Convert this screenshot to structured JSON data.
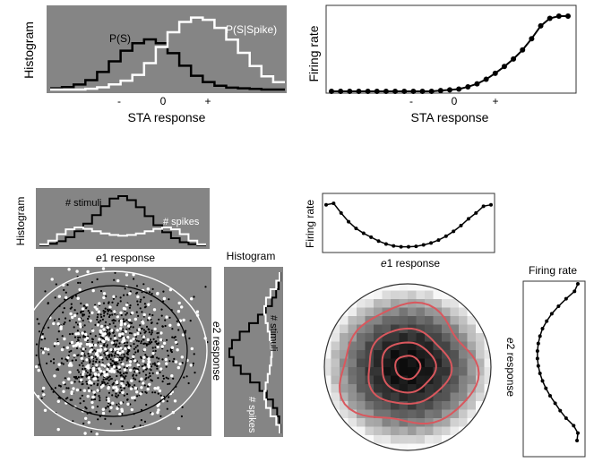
{
  "colors": {
    "panel_gray": "#858585",
    "black": "#000000",
    "white": "#ffffff",
    "contour_red": "#d9575d"
  },
  "panelA": {
    "ylabel": "Histogram",
    "xlabel": "STA response",
    "curve_labels": [
      "P(S)",
      "P(S|Spike)"
    ],
    "ticks": [
      "-",
      "0",
      "+"
    ]
  },
  "panelB": {
    "ylabel": "Firing rate",
    "xlabel": "STA response",
    "ticks": [
      "-",
      "0",
      "+"
    ]
  },
  "panelC": {
    "top_ylabel": "Histogram",
    "top_labels": [
      "# stimuli",
      "# spikes"
    ],
    "top_xlabel_italic": "e",
    "top_xlabel_num": "1",
    "top_xlabel_rest": " response",
    "side_title": "Histogram",
    "side_labels": [
      "# stimuli",
      "# spikes"
    ],
    "side_ylabel_italic": "e",
    "side_ylabel_num": "2",
    "side_ylabel_rest": " response"
  },
  "panelD": {
    "top_ylabel": "Firing rate",
    "top_xlabel_italic": "e",
    "top_xlabel_num": "1",
    "top_xlabel_rest": " response",
    "side_title": "Firing rate",
    "side_ylabel_italic": "e",
    "side_ylabel_num": "2",
    "side_ylabel_rest": " response"
  },
  "chart_data": [
    {
      "type": "line",
      "title": "",
      "xlabel": "STA response",
      "ylabel": "Histogram",
      "x_ticks": [
        "-",
        "0",
        "+"
      ],
      "series": [
        {
          "name": "P(S)",
          "values": [
            0.02,
            0.04,
            0.08,
            0.15,
            0.28,
            0.45,
            0.62,
            0.74,
            0.8,
            0.74,
            0.58,
            0.38,
            0.22,
            0.12,
            0.06,
            0.03,
            0.02,
            0.01,
            0.0,
            0.0
          ]
        },
        {
          "name": "P(S|Spike)",
          "values": [
            0.0,
            0.0,
            0.0,
            0.01,
            0.03,
            0.07,
            0.12,
            0.2,
            0.36,
            0.58,
            0.78,
            0.92,
            0.98,
            0.95,
            0.84,
            0.68,
            0.5,
            0.32,
            0.18,
            0.1
          ]
        }
      ]
    },
    {
      "type": "line",
      "title": "",
      "xlabel": "STA response",
      "ylabel": "Firing rate",
      "x_ticks": [
        "-",
        "0",
        "+"
      ],
      "series": [
        {
          "name": "",
          "values": [
            0.0,
            0.0,
            0.0,
            0.0,
            0.0,
            0.0,
            0.0,
            0.0,
            0.0,
            0.0,
            0.0,
            0.0,
            0.01,
            0.02,
            0.03,
            0.06,
            0.1,
            0.16,
            0.24,
            0.33,
            0.43,
            0.55,
            0.7,
            0.87,
            0.97,
            1.0,
            1.0
          ]
        }
      ]
    },
    {
      "type": "line",
      "title": "",
      "xlabel": "e1 response",
      "ylabel": "Histogram",
      "series": [
        {
          "name": "# stimuli",
          "values": [
            0.02,
            0.05,
            0.1,
            0.18,
            0.3,
            0.45,
            0.62,
            0.8,
            0.95,
            1.0,
            0.92,
            0.78,
            0.6,
            0.42,
            0.28,
            0.16,
            0.08,
            0.04,
            0.02
          ]
        },
        {
          "name": "# spikes",
          "values": [
            0.05,
            0.15,
            0.32,
            0.45,
            0.5,
            0.46,
            0.4,
            0.34,
            0.3,
            0.28,
            0.3,
            0.34,
            0.4,
            0.46,
            0.5,
            0.45,
            0.32,
            0.15,
            0.05
          ]
        }
      ]
    },
    {
      "type": "line",
      "title": "",
      "xlabel": "e1 response",
      "ylabel": "Firing rate",
      "series": [
        {
          "name": "",
          "values": [
            0.95,
            0.98,
            0.78,
            0.6,
            0.46,
            0.36,
            0.28,
            0.2,
            0.14,
            0.1,
            0.08,
            0.08,
            0.09,
            0.12,
            0.16,
            0.22,
            0.3,
            0.4,
            0.52,
            0.66,
            0.78,
            0.92,
            0.95
          ]
        }
      ]
    },
    {
      "type": "line",
      "title": "",
      "xlabel": "",
      "ylabel": "e2 response",
      "series": [
        {
          "name": "",
          "values": [
            0.0,
            0.08,
            0.28,
            0.46,
            0.62,
            0.74,
            0.84,
            0.9,
            0.94,
            0.96,
            0.96,
            0.94,
            0.9,
            0.84,
            0.76,
            0.66,
            0.54,
            0.42,
            0.28,
            0.1,
            0.0,
            0.02
          ]
        }
      ]
    }
  ]
}
